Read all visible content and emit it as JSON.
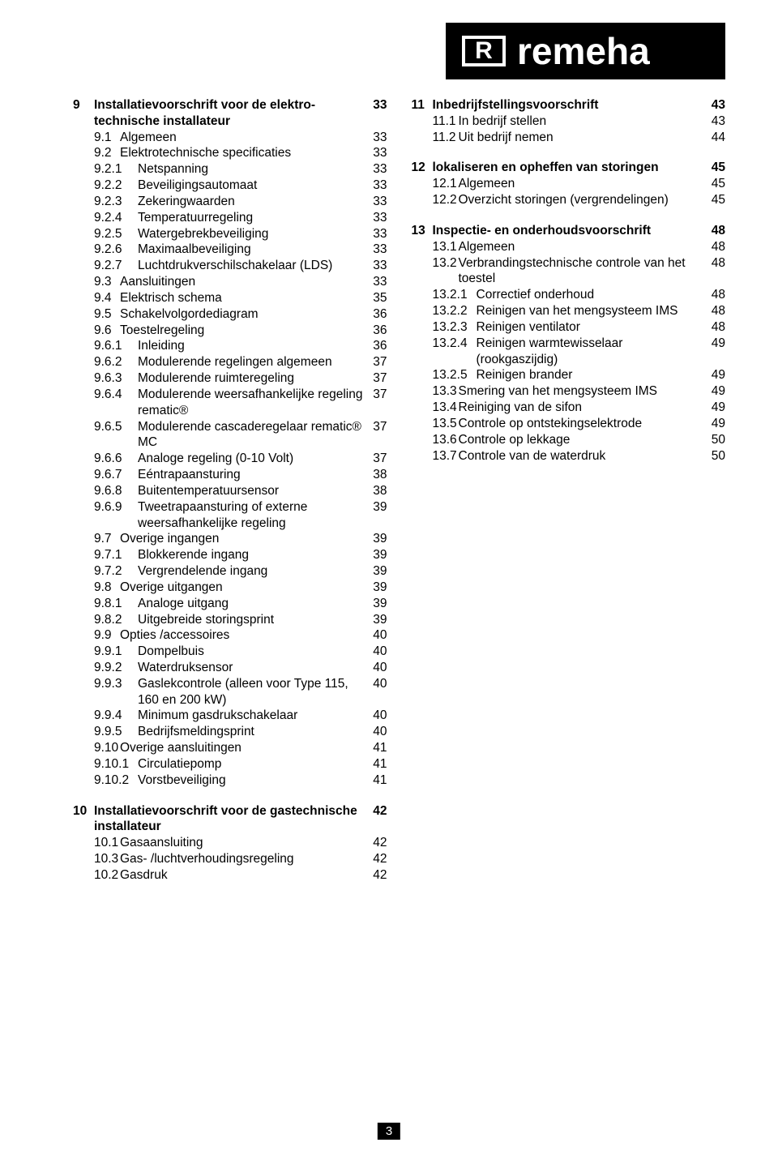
{
  "logo": {
    "mark": "R",
    "text": "remeha"
  },
  "page_number": "3",
  "left": [
    {
      "lvl": 0,
      "bold": true,
      "num": "9",
      "label": "Installatievoorschrift voor de elektro­technische installateur",
      "pg": "33",
      "wrap": true
    },
    {
      "lvl": 1,
      "num": "9.1",
      "label": "Algemeen",
      "pg": "33"
    },
    {
      "lvl": 1,
      "num": "9.2",
      "label": "Elektrotechnische specificaties",
      "pg": "33"
    },
    {
      "lvl": 2,
      "num": "9.2.1",
      "label": "Netspanning",
      "pg": "33"
    },
    {
      "lvl": 2,
      "num": "9.2.2",
      "label": "Beveiligingsautomaat",
      "pg": "33"
    },
    {
      "lvl": 2,
      "num": "9.2.3",
      "label": "Zekeringwaarden",
      "pg": "33"
    },
    {
      "lvl": 2,
      "num": "9.2.4",
      "label": "Temperatuurregeling",
      "pg": "33"
    },
    {
      "lvl": 2,
      "num": "9.2.5",
      "label": "Watergebrekbeveiliging",
      "pg": "33"
    },
    {
      "lvl": 2,
      "num": "9.2.6",
      "label": "Maximaalbeveiliging",
      "pg": "33"
    },
    {
      "lvl": 2,
      "num": "9.2.7",
      "label": "Luchtdrukverschilschakelaar (LDS)",
      "pg": "33"
    },
    {
      "lvl": 1,
      "num": "9.3",
      "label": "Aansluitingen",
      "pg": "33"
    },
    {
      "lvl": 1,
      "num": "9.4",
      "label": "Elektrisch schema",
      "pg": "35"
    },
    {
      "lvl": 1,
      "num": "9.5",
      "label": "Schakelvolgordediagram",
      "pg": "36"
    },
    {
      "lvl": 1,
      "num": "9.6",
      "label": "Toestelregeling",
      "pg": "36"
    },
    {
      "lvl": 2,
      "num": "9.6.1",
      "label": "Inleiding",
      "pg": "36"
    },
    {
      "lvl": 2,
      "num": "9.6.2",
      "label": "Modulerende regelingen algemeen",
      "pg": "37"
    },
    {
      "lvl": 2,
      "num": "9.6.3",
      "label": "Modulerende ruimteregeling",
      "pg": "37"
    },
    {
      "lvl": 2,
      "num": "9.6.4",
      "label": "Modulerende weersafhankelijke regeling rematic®",
      "pg": "37",
      "wrap": true
    },
    {
      "lvl": 2,
      "num": "9.6.5",
      "label": "Modulerende cascaderegelaar rematic® MC",
      "pg": "37",
      "wrap": true
    },
    {
      "lvl": 2,
      "num": "9.6.6",
      "label": "Analoge regeling (0-10 Volt)",
      "pg": "37"
    },
    {
      "lvl": 2,
      "num": "9.6.7",
      "label": "Eéntrapaansturing",
      "pg": "38"
    },
    {
      "lvl": 2,
      "num": "9.6.8",
      "label": "Buitentemperatuursensor",
      "pg": "38"
    },
    {
      "lvl": 2,
      "num": "9.6.9",
      "label": "Tweetrapaansturing of externe weersafhankelijke regeling",
      "pg": "39",
      "wrap": true
    },
    {
      "lvl": 1,
      "num": "9.7",
      "label": "Overige ingangen",
      "pg": "39"
    },
    {
      "lvl": 2,
      "num": "9.7.1",
      "label": "Blokkerende ingang",
      "pg": "39"
    },
    {
      "lvl": 2,
      "num": "9.7.2",
      "label": "Vergrendelende ingang",
      "pg": "39"
    },
    {
      "lvl": 1,
      "num": "9.8",
      "label": "Overige uitgangen",
      "pg": "39"
    },
    {
      "lvl": 2,
      "num": "9.8.1",
      "label": "Analoge uitgang",
      "pg": "39"
    },
    {
      "lvl": 2,
      "num": "9.8.2",
      "label": "Uitgebreide storingsprint",
      "pg": "39"
    },
    {
      "lvl": 1,
      "num": "9.9",
      "label": "Opties /accessoires",
      "pg": "40"
    },
    {
      "lvl": 2,
      "num": "9.9.1",
      "label": "Dompelbuis",
      "pg": "40"
    },
    {
      "lvl": 2,
      "num": "9.9.2",
      "label": "Waterdruksensor",
      "pg": "40"
    },
    {
      "lvl": 2,
      "num": "9.9.3",
      "label": "Gaslekcontrole (alleen voor Type 115, 160 en 200 kW)",
      "pg": "40",
      "wrap": true
    },
    {
      "lvl": 2,
      "num": "9.9.4",
      "label": "Minimum gasdrukschakelaar",
      "pg": "40"
    },
    {
      "lvl": 2,
      "num": "9.9.5",
      "label": "Bedrijfsmeldingsprint",
      "pg": "40"
    },
    {
      "lvl": 1,
      "num": "9.10",
      "label": "Overige aansluitingen",
      "pg": "41"
    },
    {
      "lvl": 2,
      "num": "9.10.1",
      "label": "Circulatiepomp",
      "pg": "41"
    },
    {
      "lvl": 2,
      "num": "9.10.2",
      "label": "Vorstbeveiliging",
      "pg": "41"
    },
    {
      "gap": true
    },
    {
      "lvl": 0,
      "bold": true,
      "num": "10",
      "label": "Installatievoorschrift voor de gastechnische installateur",
      "pg": "42",
      "wrap": true
    },
    {
      "lvl": 1,
      "num": "10.1",
      "label": "Gasaansluiting",
      "pg": "42"
    },
    {
      "lvl": 1,
      "num": "10.3",
      "label": "Gas- /luchtverhoudingsregeling",
      "pg": "42"
    },
    {
      "lvl": 1,
      "num": "10.2",
      "label": "Gasdruk",
      "pg": "42"
    }
  ],
  "right": [
    {
      "lvl": 0,
      "bold": true,
      "num": "11",
      "label": "Inbedrijfstellingsvoorschrift",
      "pg": "43"
    },
    {
      "lvl": 1,
      "num": "11.1",
      "label": "In bedrijf stellen",
      "pg": "43"
    },
    {
      "lvl": 1,
      "num": "11.2",
      "label": "Uit bedrijf nemen",
      "pg": "44"
    },
    {
      "gap": true
    },
    {
      "lvl": 0,
      "bold": true,
      "num": "12",
      "label": "lokaliseren en opheffen van storingen",
      "pg": "45"
    },
    {
      "lvl": 1,
      "num": "12.1",
      "label": "Algemeen",
      "pg": "45"
    },
    {
      "lvl": 1,
      "num": "12.2",
      "label": "Overzicht storingen (vergrendelingen)",
      "pg": "45"
    },
    {
      "gap": true
    },
    {
      "lvl": 0,
      "bold": true,
      "num": "13",
      "label": "Inspectie- en onderhoudsvoorschrift",
      "pg": "48"
    },
    {
      "lvl": 1,
      "num": "13.1",
      "label": "Algemeen",
      "pg": "48"
    },
    {
      "lvl": 1,
      "num": "13.2",
      "label": "Verbrandingstechnische controle van het toestel",
      "pg": "48",
      "wrap": true
    },
    {
      "lvl": 2,
      "num": "13.2.1",
      "label": "Correctief onderhoud",
      "pg": "48"
    },
    {
      "lvl": 2,
      "num": "13.2.2",
      "label": "Reinigen van het mengsysteem IMS",
      "pg": "48"
    },
    {
      "lvl": 2,
      "num": "13.2.3",
      "label": "Reinigen ventilator",
      "pg": "48"
    },
    {
      "lvl": 2,
      "num": "13.2.4",
      "label": "Reinigen warmtewisselaar (rookgaszijdig)",
      "pg": "49",
      "wrap": true
    },
    {
      "lvl": 2,
      "num": "13.2.5",
      "label": "Reinigen brander",
      "pg": "49"
    },
    {
      "lvl": 1,
      "num": "13.3",
      "label": "Smering van het mengsysteem IMS",
      "pg": "49"
    },
    {
      "lvl": 1,
      "num": "13.4",
      "label": "Reiniging van de sifon",
      "pg": "49"
    },
    {
      "lvl": 1,
      "num": "13.5",
      "label": "Controle op ontstekingselektrode",
      "pg": "49"
    },
    {
      "lvl": 1,
      "num": "13.6",
      "label": "Controle op lekkage",
      "pg": "50"
    },
    {
      "lvl": 1,
      "num": "13.7",
      "label": "Controle van de waterdruk",
      "pg": "50"
    }
  ]
}
